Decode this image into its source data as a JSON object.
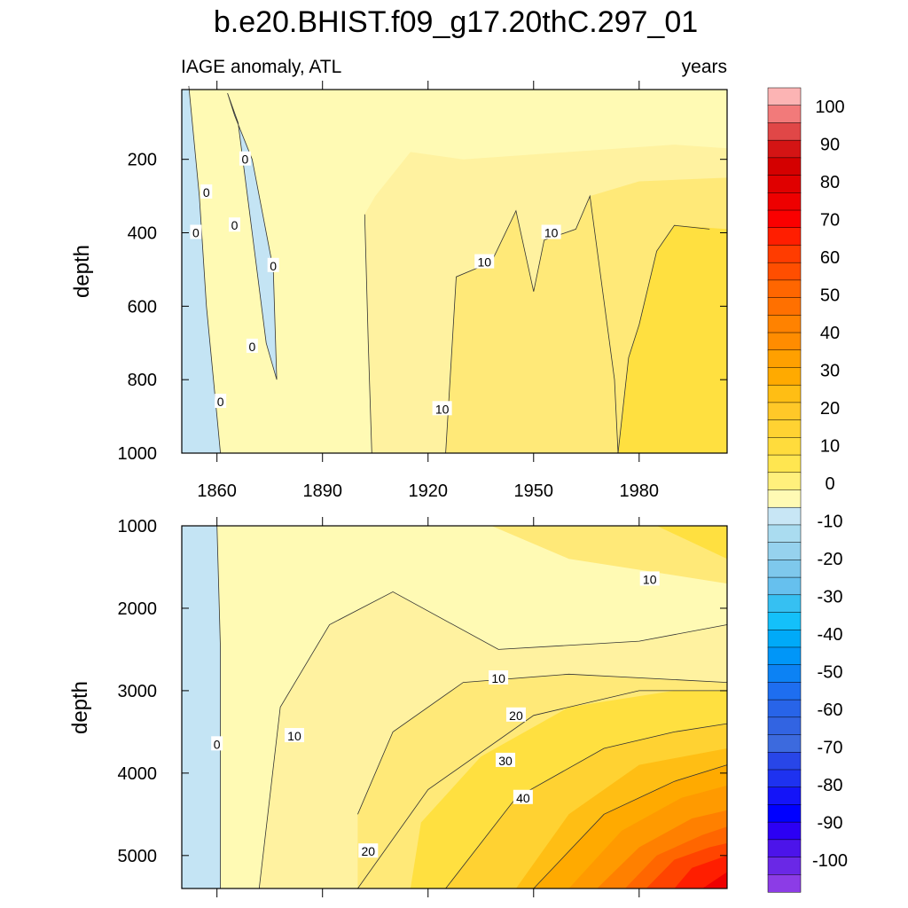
{
  "chart_data": {
    "title": "b.e20.BHIST.f09_g17.20thC.297_01",
    "type": "heatmap",
    "variable_label": "IAGE anomaly, ATL",
    "units_label": "years",
    "x_ticks": [
      1860,
      1890,
      1920,
      1950,
      1980
    ],
    "xlim": [
      1850,
      2005
    ],
    "panels": [
      {
        "name": "upper",
        "ylabel": "depth",
        "ylim": [
          10,
          1000
        ],
        "y_ticks": [
          200,
          400,
          600,
          800,
          1000
        ],
        "contour_lines": [
          {
            "level": 0,
            "x": [
              1852,
              1855,
              1857,
              1860,
              1861
            ],
            "y": [
              0,
              300,
              600,
              900,
              1000
            ]
          },
          {
            "level": 0,
            "x": [
              1863,
              1866,
              1870,
              1874,
              1877,
              1876,
              1870,
              1865,
              1863
            ],
            "y": [
              20,
              100,
              400,
              700,
              800,
              500,
              200,
              80,
              20
            ]
          },
          {
            "level": 0,
            "x": [
              1902,
              1903,
              1904
            ],
            "y": [
              350,
              700,
              1000
            ]
          },
          {
            "level": 10,
            "x": [
              1925,
              1928,
              1938,
              1945,
              1950,
              1953,
              1962,
              1966,
              1973,
              1974
            ],
            "y": [
              1000,
              520,
              480,
              340,
              560,
              420,
              390,
              300,
              800,
              1000
            ]
          },
          {
            "level": 15,
            "x": [
              1974,
              1977,
              1980,
              1985,
              1990,
              2000
            ],
            "y": [
              1000,
              740,
              650,
              450,
              380,
              390
            ]
          }
        ],
        "contour_labels": [
          {
            "text": "0",
            "x": 1868,
            "y": 200
          },
          {
            "text": "0",
            "x": 1857,
            "y": 290
          },
          {
            "text": "0",
            "x": 1865,
            "y": 380
          },
          {
            "text": "0",
            "x": 1854,
            "y": 400
          },
          {
            "text": "0",
            "x": 1876,
            "y": 490
          },
          {
            "text": "0",
            "x": 1870,
            "y": 710
          },
          {
            "text": "0",
            "x": 1861,
            "y": 860
          },
          {
            "text": "10",
            "x": 1924,
            "y": 880
          },
          {
            "text": "10",
            "x": 1936,
            "y": 480
          },
          {
            "text": "10",
            "x": 1955,
            "y": 400
          }
        ]
      },
      {
        "name": "lower",
        "ylabel": "depth",
        "ylim": [
          1000,
          5400
        ],
        "y_ticks": [
          1000,
          2000,
          3000,
          4000,
          5000
        ],
        "contour_lines": [
          {
            "level": 0,
            "x": [
              1860,
              1861,
              1861,
              1861
            ],
            "y": [
              1000,
              2500,
              4000,
              5400
            ]
          },
          {
            "level": 5,
            "x": [
              1872,
              1878,
              1892,
              1910,
              1940,
              1980,
              2005
            ],
            "y": [
              5400,
              3200,
              2200,
              1800,
              2500,
              2400,
              2200
            ]
          },
          {
            "level": 10,
            "x": [
              1900,
              1910,
              1930,
              1960,
              2005
            ],
            "y": [
              4500,
              3500,
              2900,
              2800,
              2900
            ]
          },
          {
            "level": 20,
            "x": [
              1900,
              1920,
              1950,
              1980,
              2005
            ],
            "y": [
              5400,
              4200,
              3300,
              3000,
              3000
            ]
          },
          {
            "level": 30,
            "x": [
              1925,
              1945,
              1970,
              1990,
              2005
            ],
            "y": [
              5400,
              4300,
              3700,
              3500,
              3400
            ]
          },
          {
            "level": 40,
            "x": [
              1950,
              1970,
              1990,
              2005
            ],
            "y": [
              5400,
              4500,
              4100,
              3900
            ]
          }
        ],
        "contour_labels": [
          {
            "text": "0",
            "x": 1860,
            "y": 3650
          },
          {
            "text": "10",
            "x": 1882,
            "y": 3550
          },
          {
            "text": "10",
            "x": 1940,
            "y": 2850
          },
          {
            "text": "10",
            "x": 1983,
            "y": 1650
          },
          {
            "text": "20",
            "x": 1945,
            "y": 3300
          },
          {
            "text": "20",
            "x": 1903,
            "y": 4950
          },
          {
            "text": "30",
            "x": 1942,
            "y": 3850
          },
          {
            "text": "40",
            "x": 1947,
            "y": 4300
          }
        ]
      }
    ],
    "colorbar": {
      "labels": [
        100,
        90,
        80,
        70,
        60,
        50,
        40,
        30,
        20,
        10,
        0,
        -10,
        -20,
        -30,
        -40,
        -50,
        -60,
        -70,
        -80,
        -90,
        -100
      ],
      "colors": [
        "#fcb4b4",
        "#f27a7a",
        "#e04747",
        "#d41414",
        "#d40000",
        "#e00000",
        "#ee0000",
        "#fa0000",
        "#ff1e00",
        "#ff3c00",
        "#ff4e00",
        "#ff6600",
        "#ff7000",
        "#ff8200",
        "#ff8c00",
        "#ffa000",
        "#ffaa00",
        "#ffbe14",
        "#ffc828",
        "#ffd232",
        "#ffdc3c",
        "#ffe650",
        "#fff07c",
        "#fffab4",
        "#c8e6f5",
        "#aadcf0",
        "#96d2ee",
        "#7ec8ec",
        "#66c0ee",
        "#36c0f2",
        "#14c0fa",
        "#00aaf8",
        "#0096f8",
        "#0c82f4",
        "#1e6ef0",
        "#2864e8",
        "#3264e2",
        "#3c6ade",
        "#2846e8",
        "#1e32f0",
        "#1414f8",
        "#0000ff",
        "#2c00f4",
        "#4c14ea",
        "#6a28e6",
        "#8c3ce6"
      ]
    },
    "fill_colors": {
      "neg": "#c4e4f4",
      "l0": "#fffab4",
      "l5": "#fff2a0",
      "l10": "#ffe978",
      "l15": "#ffe040",
      "l20": "#ffd232",
      "l25": "#ffbe14",
      "l30": "#ffaa00",
      "l35": "#ff9a00",
      "l40": "#ff8000",
      "l45": "#ff6600",
      "l50": "#ff4400",
      "l55": "#ff1e00",
      "l60": "#ee0000"
    }
  }
}
